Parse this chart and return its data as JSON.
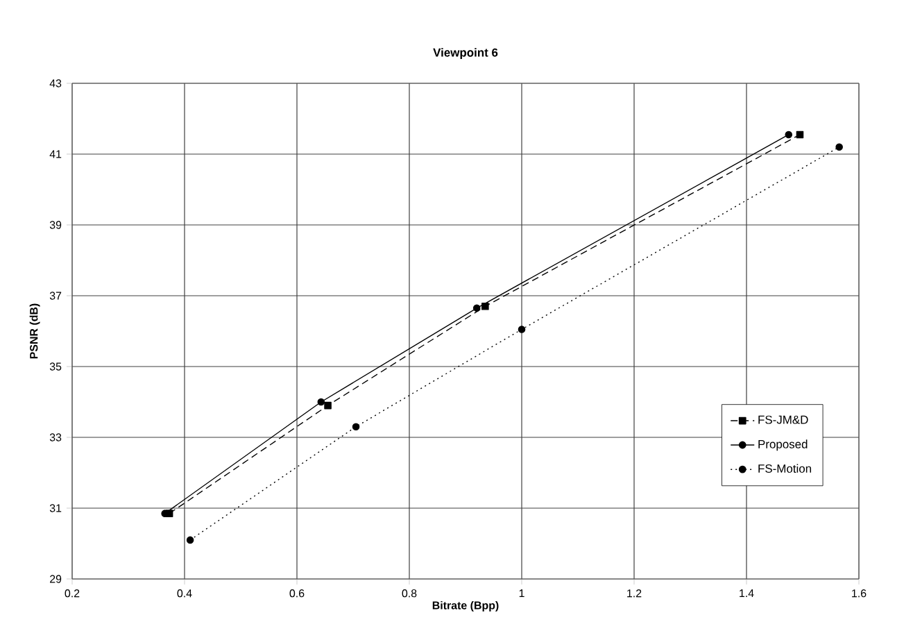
{
  "chart_data": {
    "type": "line",
    "title": "Viewpoint 6",
    "xlabel": "Bitrate (Bpp)",
    "ylabel": "PSNR (dB)",
    "xlim": [
      0.2,
      1.6
    ],
    "xticks": [
      0.2,
      0.4,
      0.6,
      0.8,
      1,
      1.2,
      1.4,
      1.6
    ],
    "ylim": [
      29,
      43
    ],
    "yticks": [
      29,
      31,
      33,
      35,
      37,
      39,
      41,
      43
    ],
    "grid": true,
    "legend": "right",
    "series": [
      {
        "name": "FS-JM&D",
        "color": "#000000",
        "marker": "square",
        "line_style": "dashed",
        "x": [
          0.373,
          0.655,
          0.935,
          1.495
        ],
        "values": [
          30.85,
          33.9,
          36.7,
          41.55
        ]
      },
      {
        "name": "Proposed",
        "color": "#000000",
        "marker": "circle",
        "line_style": "solid",
        "x": [
          0.365,
          0.643,
          0.92,
          1.475
        ],
        "values": [
          30.85,
          34.0,
          36.65,
          41.55
        ]
      },
      {
        "name": "FS-Motion",
        "color": "#000000",
        "marker": "circle",
        "line_style": "dotted",
        "x": [
          0.41,
          0.705,
          1.0,
          1.565
        ],
        "values": [
          30.1,
          33.3,
          36.05,
          41.2
        ]
      }
    ]
  }
}
